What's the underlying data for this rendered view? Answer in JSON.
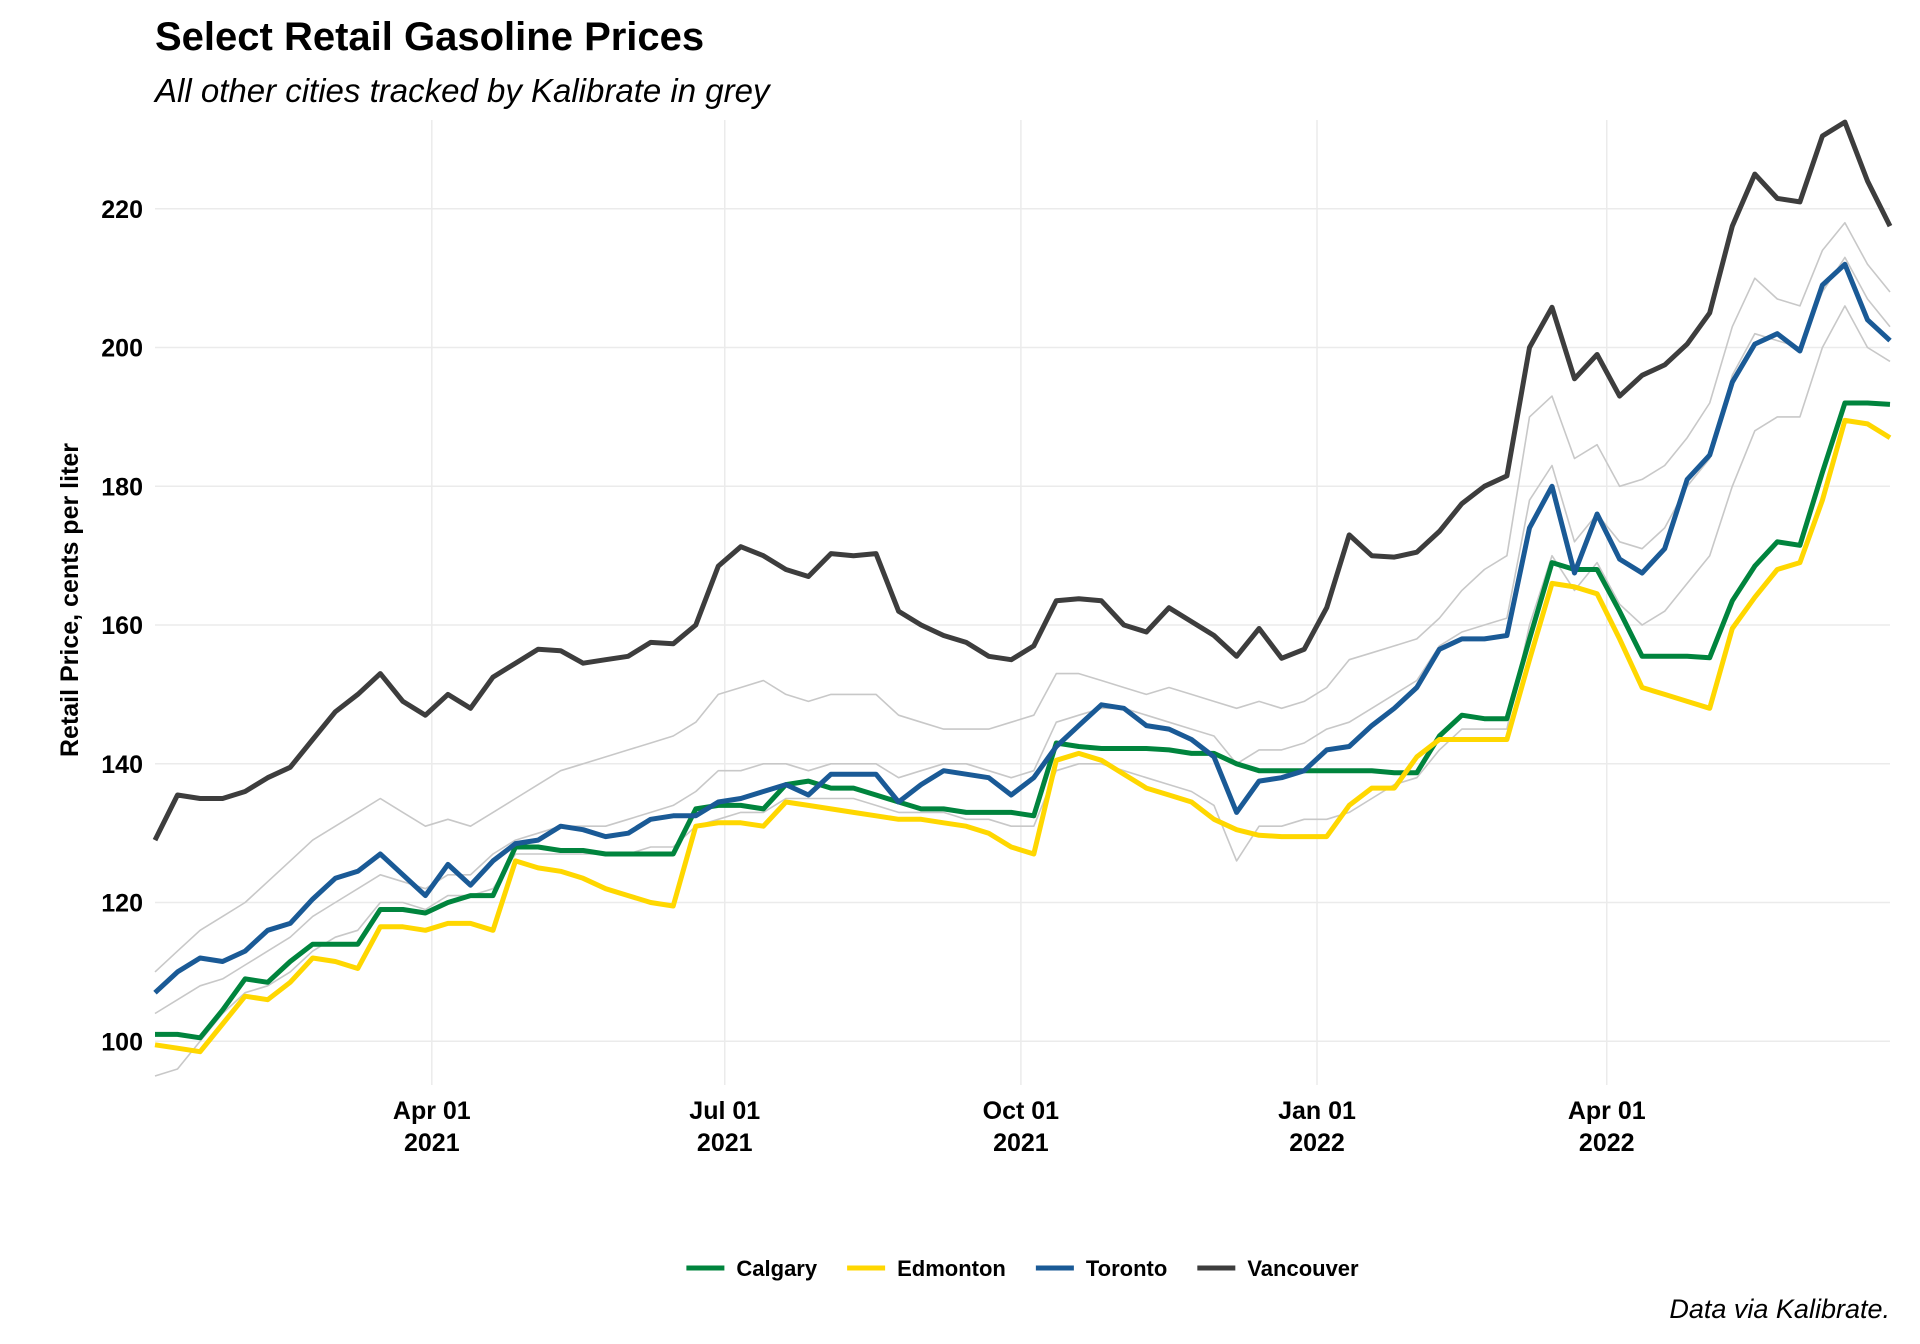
{
  "chart_data": {
    "type": "line",
    "title": "Select Retail Gasoline Prices",
    "subtitle": "All other cities tracked by Kalibrate in grey",
    "y_label": "Retail Price, cents per liter",
    "caption": "Data via Kalibrate.",
    "x": [
      "2021-01-05",
      "2021-01-12",
      "2021-01-19",
      "2021-01-26",
      "2021-02-02",
      "2021-02-09",
      "2021-02-16",
      "2021-02-23",
      "2021-03-02",
      "2021-03-09",
      "2021-03-16",
      "2021-03-23",
      "2021-03-30",
      "2021-04-06",
      "2021-04-13",
      "2021-04-20",
      "2021-04-27",
      "2021-05-04",
      "2021-05-11",
      "2021-05-18",
      "2021-05-25",
      "2021-06-01",
      "2021-06-08",
      "2021-06-15",
      "2021-06-22",
      "2021-06-29",
      "2021-07-06",
      "2021-07-13",
      "2021-07-20",
      "2021-07-27",
      "2021-08-03",
      "2021-08-10",
      "2021-08-17",
      "2021-08-24",
      "2021-08-31",
      "2021-09-07",
      "2021-09-14",
      "2021-09-21",
      "2021-09-28",
      "2021-10-05",
      "2021-10-12",
      "2021-10-19",
      "2021-10-26",
      "2021-11-02",
      "2021-11-09",
      "2021-11-16",
      "2021-11-23",
      "2021-11-30",
      "2021-12-07",
      "2021-12-14",
      "2021-12-21",
      "2021-12-28",
      "2022-01-04",
      "2022-01-11",
      "2022-01-18",
      "2022-01-25",
      "2022-02-01",
      "2022-02-08",
      "2022-02-15",
      "2022-02-22",
      "2022-03-01",
      "2022-03-08",
      "2022-03-15",
      "2022-03-22",
      "2022-03-29",
      "2022-04-05",
      "2022-04-12",
      "2022-04-19",
      "2022-04-26",
      "2022-05-03",
      "2022-05-10",
      "2022-05-17",
      "2022-05-24",
      "2022-05-31",
      "2022-06-07",
      "2022-06-14",
      "2022-06-21",
      "2022-06-28"
    ],
    "xlim": [
      "2021-01-05",
      "2022-06-28"
    ],
    "xticks": [
      {
        "value": "2021-04-01",
        "label": "Apr 01\n2021"
      },
      {
        "value": "2021-07-01",
        "label": "Jul 01\n2021"
      },
      {
        "value": "2021-10-01",
        "label": "Oct 01\n2021"
      },
      {
        "value": "2022-01-01",
        "label": "Jan 01\n2022"
      },
      {
        "value": "2022-04-01",
        "label": "Apr 01\n2022"
      }
    ],
    "ylim": [
      93.7,
      232.8
    ],
    "yticks": [
      100,
      120,
      140,
      160,
      180,
      200,
      220
    ],
    "grid": true,
    "legend": "bottom",
    "series": [
      {
        "color": "#c8c8c8",
        "values": [
          110,
          113,
          116,
          118,
          120,
          123,
          126,
          129,
          131,
          133,
          135,
          133,
          131,
          132,
          131,
          133,
          135,
          137,
          139,
          140,
          141,
          142,
          143,
          144,
          146,
          150,
          151,
          152,
          150,
          149,
          150,
          150,
          150,
          147,
          146,
          145,
          145,
          145,
          146,
          147,
          153,
          153,
          152,
          151,
          150,
          151,
          150,
          149,
          148,
          149,
          148,
          149,
          151,
          155,
          156,
          157,
          158,
          161,
          165,
          168,
          170,
          190,
          193,
          184,
          186,
          180,
          181,
          183,
          187,
          192,
          203,
          210,
          207,
          206,
          214,
          218,
          212,
          208
        ]
      },
      {
        "color": "#c8c8c8",
        "values": [
          104,
          106,
          108,
          109,
          111,
          113,
          115,
          118,
          120,
          122,
          124,
          123,
          122,
          124,
          124,
          127,
          129,
          130,
          131,
          131,
          131,
          132,
          133,
          134,
          136,
          139,
          139,
          140,
          140,
          139,
          140,
          140,
          140,
          138,
          139,
          140,
          140,
          139,
          138,
          139,
          146,
          147,
          148,
          148,
          147,
          146,
          145,
          144,
          140,
          142,
          142,
          143,
          145,
          146,
          148,
          150,
          152,
          157,
          159,
          160,
          161,
          178,
          183,
          172,
          176,
          172,
          171,
          174,
          180,
          184,
          196,
          202,
          201,
          200,
          208,
          213,
          207,
          203
        ]
      },
      {
        "color": "#c8c8c8",
        "values": [
          95,
          96,
          100,
          104,
          107,
          108,
          110,
          113,
          115,
          116,
          120,
          120,
          119,
          121,
          121,
          122,
          127,
          127,
          127,
          127,
          127,
          127,
          128,
          128,
          131,
          132,
          133,
          133,
          135,
          135,
          135,
          135,
          134,
          133,
          133,
          133,
          132,
          132,
          131,
          131,
          139,
          140,
          140,
          139,
          138,
          137,
          136,
          134,
          126,
          131,
          131,
          132,
          132,
          133,
          135,
          137,
          138,
          142,
          145,
          145,
          145,
          160,
          170,
          165,
          169,
          163,
          160,
          162,
          166,
          170,
          180,
          188,
          190,
          190,
          200,
          206,
          200,
          198
        ]
      },
      {
        "name": "Calgary",
        "color": "#00843d",
        "values": [
          101,
          101,
          100.5,
          104.5,
          109,
          108.5,
          111.5,
          114,
          114,
          114,
          119,
          119,
          118.5,
          120,
          121,
          121,
          128,
          128,
          127.5,
          127.5,
          127,
          127,
          127,
          127,
          133.5,
          134,
          134,
          133.5,
          137,
          137.5,
          136.5,
          136.5,
          135.5,
          134.5,
          133.5,
          133.5,
          133,
          133,
          133,
          132.5,
          143,
          142.5,
          142.2,
          142.2,
          142.2,
          142,
          141.5,
          141.5,
          140,
          139,
          139,
          139,
          139,
          139,
          139,
          138.7,
          138.7,
          144,
          147,
          146.5,
          146.5,
          158,
          169,
          168,
          168,
          162,
          155.5,
          155.5,
          155.5,
          155.3,
          163.5,
          168.5,
          172,
          171.5,
          182,
          192,
          192,
          191.8
        ]
      },
      {
        "name": "Edmonton",
        "color": "#ffd700",
        "values": [
          99.5,
          99,
          98.5,
          102.5,
          106.5,
          106,
          108.5,
          112,
          111.5,
          110.5,
          116.5,
          116.5,
          116,
          117,
          117,
          116,
          126,
          125,
          124.5,
          123.5,
          122,
          121,
          120,
          119.5,
          131,
          131.5,
          131.5,
          131,
          134.5,
          134,
          133.5,
          133,
          132.5,
          132,
          132,
          131.5,
          131,
          130,
          128,
          127,
          140.5,
          141.5,
          140.5,
          138.5,
          136.5,
          135.5,
          134.5,
          132,
          130.5,
          129.7,
          129.5,
          129.5,
          129.5,
          134,
          136.5,
          136.5,
          141,
          143.5,
          143.5,
          143.5,
          143.5,
          155,
          166,
          165.5,
          164.5,
          158,
          151,
          150,
          149,
          148,
          159.5,
          164,
          168,
          169,
          178,
          189.5,
          189,
          187
        ]
      },
      {
        "name": "Toronto",
        "color": "#1a5a96",
        "values": [
          107,
          110,
          112,
          111.5,
          113,
          116,
          117,
          120.5,
          123.5,
          124.5,
          127,
          124,
          121,
          125.5,
          122.5,
          126,
          128.5,
          129,
          131,
          130.5,
          129.5,
          130,
          132,
          132.5,
          132.5,
          134.5,
          135,
          136,
          137,
          135.5,
          138.5,
          138.5,
          138.5,
          134.5,
          137,
          139,
          138.5,
          138,
          135.5,
          138,
          142.5,
          145.5,
          148.5,
          148,
          145.5,
          145,
          143.5,
          141,
          133,
          137.5,
          138,
          139,
          142,
          142.5,
          145.5,
          148,
          151,
          156.5,
          158,
          158,
          158.5,
          174,
          180,
          167.5,
          176,
          169.5,
          167.5,
          171,
          181,
          184.5,
          195,
          200.5,
          202,
          199.5,
          209,
          212,
          204,
          201
        ]
      },
      {
        "name": "Vancouver",
        "color": "#3d3d3d",
        "values": [
          129,
          135.5,
          135,
          135,
          136,
          138,
          139.5,
          143.5,
          147.5,
          150,
          153,
          149,
          147,
          150,
          148,
          152.5,
          154.5,
          156.5,
          156.3,
          154.5,
          155,
          155.5,
          157.5,
          157.3,
          160,
          168.5,
          171.3,
          170,
          168,
          167,
          170.3,
          170,
          170.3,
          162,
          160,
          158.5,
          157.5,
          155.5,
          155,
          157,
          163.5,
          163.8,
          163.5,
          160,
          159,
          162.5,
          160.5,
          158.5,
          155.5,
          159.5,
          155.2,
          156.5,
          162.5,
          173,
          170,
          169.8,
          170.5,
          173.5,
          177.5,
          180,
          181.5,
          200,
          205.8,
          195.5,
          199,
          193,
          196,
          197.5,
          200.5,
          205,
          217.5,
          225,
          221.5,
          221,
          230.5,
          232.5,
          224,
          217.5
        ]
      }
    ]
  }
}
